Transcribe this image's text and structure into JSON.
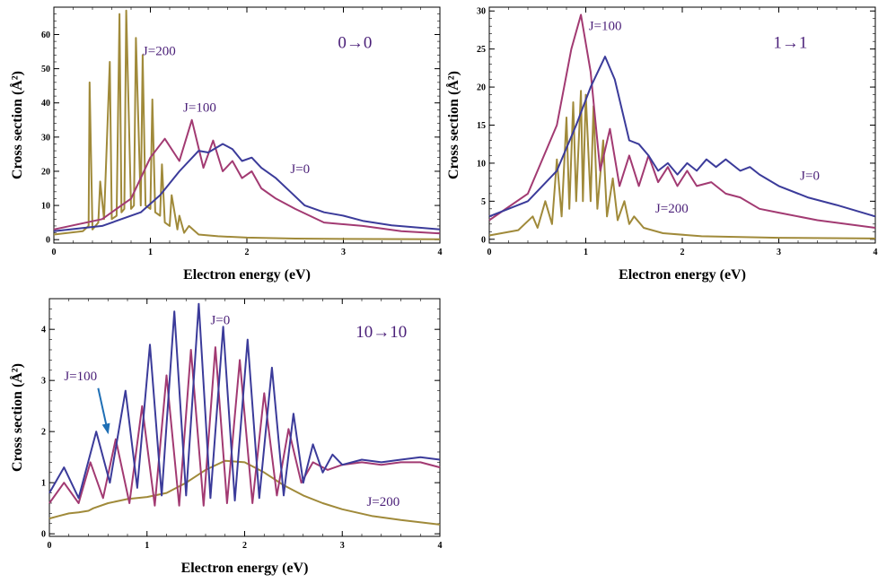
{
  "colors": {
    "J0": "#3b3b9a",
    "J100": "#a23a72",
    "J200": "#a08a3a",
    "label": "#4a1f78",
    "arrow": "#1f6fb5"
  },
  "chart_data": [
    {
      "type": "line",
      "transition": "0→0",
      "xlabel": "Electron energy (eV)",
      "ylabel": "Cross section (Å²)",
      "xlim": [
        0,
        4
      ],
      "ylim": [
        -1,
        68
      ],
      "xticks": [
        "0",
        "1",
        "2",
        "3",
        "4"
      ],
      "yticks": [
        "0",
        "10",
        "20",
        "30",
        "40",
        "50",
        "60"
      ],
      "grid": false,
      "series": [
        {
          "name": "J=0",
          "x": [
            0,
            0.5,
            0.9,
            1.1,
            1.3,
            1.5,
            1.6,
            1.75,
            1.85,
            1.95,
            2.05,
            2.15,
            2.3,
            2.45,
            2.6,
            2.8,
            3.0,
            3.2,
            3.5,
            4.0
          ],
          "y": [
            2.5,
            4,
            8,
            13,
            20,
            26,
            25.5,
            28,
            26.5,
            23,
            24,
            21,
            18,
            14,
            10,
            8,
            7,
            5.5,
            4.2,
            3
          ]
        },
        {
          "name": "J=100",
          "x": [
            0,
            0.5,
            0.8,
            1.0,
            1.15,
            1.3,
            1.43,
            1.55,
            1.65,
            1.75,
            1.85,
            1.95,
            2.05,
            2.15,
            2.3,
            2.5,
            2.8,
            3.2,
            3.6,
            4.0
          ],
          "y": [
            3,
            6,
            12,
            24,
            29.5,
            23,
            35,
            21,
            29,
            20,
            23,
            18,
            20,
            15,
            12,
            9,
            5,
            4,
            2.5,
            1.8
          ]
        },
        {
          "name": "J=200",
          "x": [
            0,
            0.3,
            0.36,
            0.37,
            0.4,
            0.46,
            0.48,
            0.52,
            0.58,
            0.6,
            0.65,
            0.68,
            0.7,
            0.73,
            0.75,
            0.8,
            0.83,
            0.85,
            0.9,
            0.92,
            0.95,
            1.0,
            1.02,
            1.05,
            1.1,
            1.12,
            1.15,
            1.2,
            1.22,
            1.28,
            1.3,
            1.35,
            1.4,
            1.5,
            1.7,
            2.0,
            2.5,
            3.0,
            4.0
          ],
          "y": [
            1.5,
            2.5,
            4,
            46,
            3,
            5,
            17,
            6,
            52,
            6,
            7,
            66,
            8,
            9,
            67,
            9,
            10,
            59,
            10,
            54,
            10,
            9,
            41,
            8,
            7,
            22,
            5,
            4,
            13,
            3,
            7,
            2,
            4,
            1.5,
            1,
            0.6,
            0.3,
            0.2,
            0.1
          ]
        }
      ],
      "annotations": [
        {
          "text": "J=200",
          "x": 0.92,
          "y": 54
        },
        {
          "text": "J=100",
          "x": 1.34,
          "y": 37.5
        },
        {
          "text": "J=0",
          "x": 2.45,
          "y": 19.5
        }
      ]
    },
    {
      "type": "line",
      "transition": "1→1",
      "xlabel": "Electron energy (eV)",
      "ylabel": "Cross section (Å²)",
      "xlim": [
        0,
        4
      ],
      "ylim": [
        -0.5,
        30.5
      ],
      "xticks": [
        "0",
        "1",
        "2",
        "3",
        "4"
      ],
      "yticks": [
        "0",
        "5",
        "10",
        "15",
        "20",
        "25",
        "30"
      ],
      "grid": false,
      "series": [
        {
          "name": "J=0",
          "x": [
            0,
            0.4,
            0.7,
            0.9,
            1.05,
            1.2,
            1.3,
            1.45,
            1.55,
            1.65,
            1.75,
            1.85,
            1.95,
            2.05,
            2.15,
            2.25,
            2.35,
            2.45,
            2.6,
            2.7,
            2.8,
            3.0,
            3.3,
            3.6,
            4.0
          ],
          "y": [
            3,
            5,
            9,
            15,
            20,
            24,
            21,
            13,
            12.5,
            11,
            9,
            10,
            8.5,
            10,
            9,
            10.5,
            9.5,
            10.5,
            9,
            9.5,
            8.5,
            7,
            5.5,
            4.5,
            3
          ]
        },
        {
          "name": "J=100",
          "x": [
            0,
            0.4,
            0.7,
            0.85,
            0.95,
            1.05,
            1.15,
            1.25,
            1.35,
            1.45,
            1.55,
            1.65,
            1.75,
            1.85,
            1.95,
            2.05,
            2.15,
            2.3,
            2.45,
            2.6,
            2.8,
            3.0,
            3.4,
            3.7,
            4.0
          ],
          "y": [
            2.5,
            6,
            15,
            25,
            29.5,
            22,
            9,
            14.5,
            7,
            11,
            7,
            11,
            7.5,
            9.5,
            7,
            9,
            7,
            7.5,
            6,
            5.5,
            4,
            3.5,
            2.5,
            2.0,
            1.5
          ]
        },
        {
          "name": "J=200",
          "x": [
            0,
            0.3,
            0.45,
            0.5,
            0.58,
            0.65,
            0.7,
            0.75,
            0.8,
            0.83,
            0.87,
            0.9,
            0.95,
            0.97,
            1.0,
            1.05,
            1.08,
            1.12,
            1.18,
            1.22,
            1.28,
            1.33,
            1.4,
            1.45,
            1.5,
            1.6,
            1.8,
            2.2,
            3.0,
            4.0
          ],
          "y": [
            0.5,
            1.2,
            3,
            1.5,
            5,
            2,
            10.5,
            3,
            16,
            4,
            18,
            5,
            19.5,
            5,
            19,
            5,
            17.5,
            4,
            13,
            3,
            8,
            2.5,
            5,
            2,
            3,
            1.5,
            0.8,
            0.4,
            0.2,
            0.1
          ]
        }
      ],
      "annotations": [
        {
          "text": "J=100",
          "x": 1.03,
          "y": 27.5
        },
        {
          "text": "J=0",
          "x": 3.22,
          "y": 7.8
        },
        {
          "text": "J=200",
          "x": 1.72,
          "y": 3.5
        }
      ]
    },
    {
      "type": "line",
      "transition": "10→10",
      "xlabel": "Electron energy (eV)",
      "ylabel": "Cross section (Å²)",
      "xlim": [
        0,
        4
      ],
      "ylim": [
        -0.05,
        4.6
      ],
      "xticks": [
        "0",
        "1",
        "2",
        "3",
        "4"
      ],
      "yticks": [
        "0",
        "1",
        "2",
        "3",
        "4"
      ],
      "grid": false,
      "series": [
        {
          "name": "J=0",
          "x": [
            0,
            0.15,
            0.3,
            0.48,
            0.62,
            0.78,
            0.9,
            1.03,
            1.15,
            1.28,
            1.4,
            1.53,
            1.65,
            1.78,
            1.9,
            2.03,
            2.15,
            2.28,
            2.4,
            2.5,
            2.6,
            2.7,
            2.8,
            2.9,
            3.0,
            3.2,
            3.4,
            3.6,
            3.8,
            4.0
          ],
          "y": [
            0.8,
            1.3,
            0.7,
            2.0,
            1.0,
            2.8,
            0.9,
            3.7,
            0.75,
            4.35,
            0.75,
            4.5,
            0.7,
            4.05,
            0.65,
            3.8,
            0.7,
            3.25,
            0.75,
            2.35,
            1.0,
            1.75,
            1.2,
            1.55,
            1.35,
            1.45,
            1.4,
            1.45,
            1.5,
            1.45
          ]
        },
        {
          "name": "J=100",
          "x": [
            0,
            0.15,
            0.3,
            0.42,
            0.55,
            0.68,
            0.82,
            0.95,
            1.08,
            1.2,
            1.33,
            1.45,
            1.58,
            1.7,
            1.82,
            1.95,
            2.08,
            2.2,
            2.33,
            2.45,
            2.58,
            2.7,
            2.85,
            3.0,
            3.2,
            3.4,
            3.6,
            3.8,
            4.0
          ],
          "y": [
            0.6,
            1.0,
            0.6,
            1.4,
            0.7,
            1.85,
            0.6,
            2.5,
            0.55,
            3.1,
            0.55,
            3.6,
            0.55,
            3.65,
            0.6,
            3.4,
            0.6,
            2.75,
            0.75,
            2.05,
            1.0,
            1.4,
            1.25,
            1.35,
            1.4,
            1.35,
            1.4,
            1.4,
            1.3
          ]
        },
        {
          "name": "J=200",
          "x": [
            0,
            0.1,
            0.2,
            0.3,
            0.4,
            0.45,
            0.6,
            0.8,
            1.0,
            1.2,
            1.4,
            1.6,
            1.8,
            2.0,
            2.2,
            2.4,
            2.6,
            2.8,
            3.0,
            3.3,
            3.6,
            4.0
          ],
          "y": [
            0.3,
            0.35,
            0.4,
            0.42,
            0.45,
            0.5,
            0.6,
            0.68,
            0.72,
            0.8,
            1.0,
            1.25,
            1.43,
            1.4,
            1.2,
            0.95,
            0.75,
            0.6,
            0.48,
            0.35,
            0.27,
            0.18
          ]
        }
      ],
      "annotations": [
        {
          "text": "J=0",
          "x": 1.65,
          "y": 4.1
        },
        {
          "text": "J=100",
          "x": 0.15,
          "y": 3.0
        },
        {
          "text": "J=200",
          "x": 3.25,
          "y": 0.55
        }
      ]
    }
  ]
}
